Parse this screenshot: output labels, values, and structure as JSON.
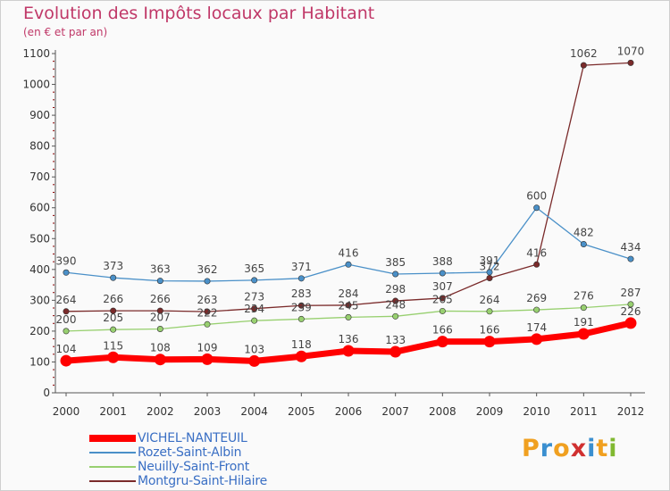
{
  "header": {
    "title": "Evolution des Impôts locaux par Habitant",
    "subtitle": "(en € et par an)"
  },
  "logo": {
    "text": "Proxiti",
    "colors": [
      "#f0a020",
      "#3a8fd0",
      "#f0a020",
      "#d03030",
      "#3a8fd0",
      "#f0a020",
      "#80b830"
    ]
  },
  "colors": {
    "title": "#c03868",
    "legend_text": "#3a6fc4",
    "axis": "#555555",
    "grid_tick": "#8b0000"
  },
  "chart_data": {
    "type": "line",
    "x": [
      "2000",
      "2001",
      "2002",
      "2003",
      "2004",
      "2005",
      "2006",
      "2007",
      "2008",
      "2009",
      "2010",
      "2011",
      "2012"
    ],
    "ylim": [
      0,
      1100
    ],
    "yticks": [
      0,
      100,
      200,
      300,
      400,
      500,
      600,
      700,
      800,
      900,
      1000,
      1100
    ],
    "grid": false,
    "legend_position": "bottom-left",
    "series": [
      {
        "name": "VICHEL-NANTEUIL",
        "color": "#ff0000",
        "values": [
          104,
          115,
          108,
          109,
          103,
          118,
          136,
          133,
          166,
          166,
          174,
          191,
          226
        ],
        "labels": [
          "104",
          "115",
          "108",
          "109",
          "103",
          "118",
          "136",
          "133",
          "166",
          "166",
          "174",
          "191",
          "226"
        ]
      },
      {
        "name": "Rozet-Saint-Albin",
        "color": "#4a90c8",
        "values": [
          390,
          373,
          363,
          362,
          365,
          371,
          416,
          385,
          388,
          391,
          600,
          482,
          434
        ],
        "labels": [
          "390",
          "373",
          "363",
          "362",
          "365",
          "371",
          "416",
          "385",
          "388",
          "391",
          "600",
          "482",
          "434"
        ]
      },
      {
        "name": "Neuilly-Saint-Front",
        "color": "#98d070",
        "values": [
          200,
          205,
          207,
          222,
          234,
          239,
          245,
          248,
          265,
          264,
          269,
          276,
          287
        ],
        "labels": [
          "200",
          "205",
          "207",
          "222",
          "234",
          "239",
          "245",
          "248",
          "265",
          "264",
          "269",
          "276",
          "287"
        ]
      },
      {
        "name": "Montgru-Saint-Hilaire",
        "color": "#7a2a2a",
        "values": [
          264,
          266,
          266,
          263,
          273,
          283,
          284,
          298,
          307,
          372,
          416,
          1062,
          1070
        ],
        "labels": [
          "264",
          "266",
          "266",
          "263",
          "273",
          "283",
          "284",
          "298",
          "307",
          "372",
          "416",
          "1062",
          "1070"
        ]
      }
    ]
  }
}
